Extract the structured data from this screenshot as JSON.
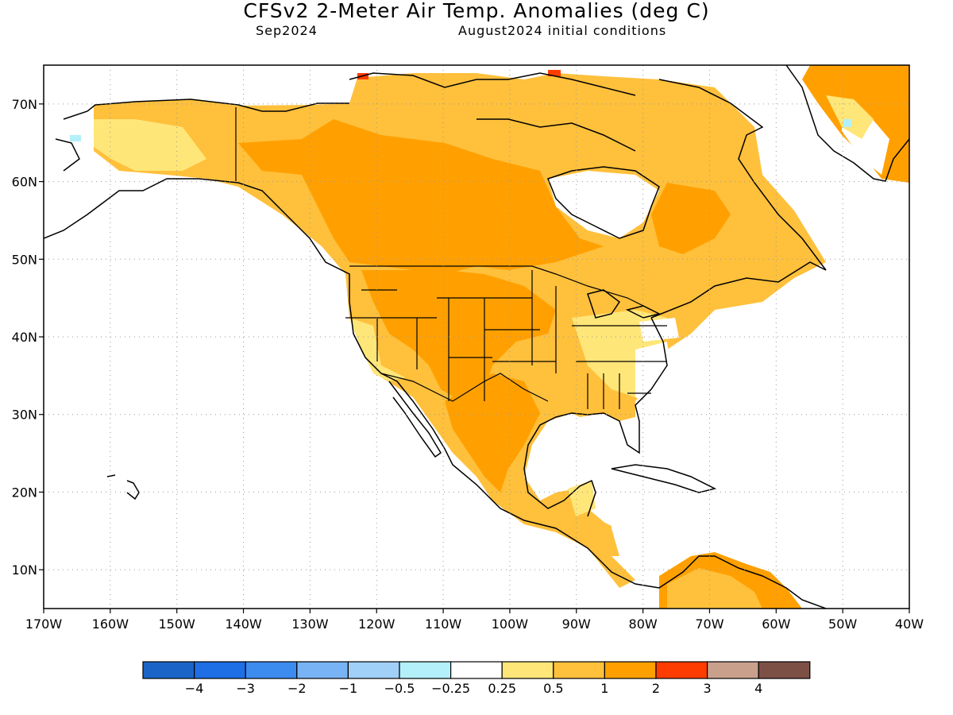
{
  "header": {
    "title": "CFSv2 2-Meter Air Temp. Anomalies (deg C)",
    "valid_month": "Sep2024",
    "initial_conditions": "August2024 initial conditions"
  },
  "map": {
    "projection": "cylindrical equidistant",
    "lon_range": [
      -170,
      -40
    ],
    "lat_range": [
      5,
      75
    ],
    "lon_ticks": [
      {
        "v": -170,
        "label": "170W"
      },
      {
        "v": -160,
        "label": "160W"
      },
      {
        "v": -150,
        "label": "150W"
      },
      {
        "v": -140,
        "label": "140W"
      },
      {
        "v": -130,
        "label": "130W"
      },
      {
        "v": -120,
        "label": "120W"
      },
      {
        "v": -110,
        "label": "110W"
      },
      {
        "v": -100,
        "label": "100W"
      },
      {
        "v": -90,
        "label": "90W"
      },
      {
        "v": -80,
        "label": "80W"
      },
      {
        "v": -70,
        "label": "70W"
      },
      {
        "v": -60,
        "label": "60W"
      },
      {
        "v": -50,
        "label": "50W"
      },
      {
        "v": -40,
        "label": "40W"
      }
    ],
    "lat_ticks": [
      {
        "v": 10,
        "label": "10N"
      },
      {
        "v": 20,
        "label": "20N"
      },
      {
        "v": 30,
        "label": "30N"
      },
      {
        "v": 40,
        "label": "40N"
      },
      {
        "v": 50,
        "label": "50N"
      },
      {
        "v": 60,
        "label": "60N"
      },
      {
        "v": 70,
        "label": "70N"
      }
    ],
    "grid": "dotted"
  },
  "legend": {
    "colors": [
      "#1a64c8",
      "#1e6ee6",
      "#3c8cf0",
      "#78b4f5",
      "#a0d0f8",
      "#b4f0fa",
      "#ffffff",
      "#ffe678",
      "#ffc03c",
      "#ffa000",
      "#ff3c00",
      "#c8a08c",
      "#7d5046"
    ],
    "labels": [
      "−4",
      "−3",
      "−2",
      "−1",
      "−0.5",
      "−0.25",
      "0.25",
      "0.5",
      "1",
      "2",
      "3",
      "4"
    ]
  },
  "regions": [
    {
      "name": "alaska-interior",
      "category": "0.5-1",
      "color": "#ffc03c"
    },
    {
      "name": "alaska-north-slope",
      "category": "0.25-0.5",
      "color": "#ffe678"
    },
    {
      "name": "canada-prairies",
      "category": "1-2",
      "color": "#ffa000"
    },
    {
      "name": "us-plains-southwest",
      "category": "1-2",
      "color": "#ffa000"
    },
    {
      "name": "us-east",
      "category": "0.5-1",
      "color": "#ffc03c"
    },
    {
      "name": "mexico",
      "category": "1-2",
      "color": "#ffa000"
    },
    {
      "name": "greenland-coast",
      "category": "1-2",
      "color": "#ffa000"
    },
    {
      "name": "arctic-hotspot",
      "category": "2-3",
      "color": "#ff3c00"
    },
    {
      "name": "south-america-north",
      "category": "1-2",
      "color": "#ffa000"
    }
  ]
}
